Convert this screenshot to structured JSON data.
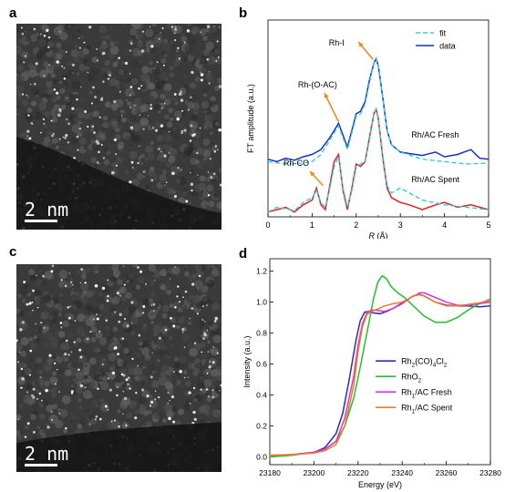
{
  "panels": {
    "a": {
      "letter": "a",
      "scalebar": "2 nm"
    },
    "b": {
      "letter": "b"
    },
    "c": {
      "letter": "c",
      "scalebar": "2 nm"
    },
    "d": {
      "letter": "d"
    }
  },
  "chart_data": [
    {
      "type": "line",
      "panel": "b",
      "xlabel_var": "R",
      "xlabel_unit": " (Å)",
      "ylabel": "FT amplitude (a.u.)",
      "xlim": [
        0,
        5
      ],
      "xticks": [
        0,
        1,
        2,
        3,
        4,
        5
      ],
      "legend": {
        "position": "top-right",
        "entries": [
          "fit",
          "data"
        ]
      },
      "colors": {
        "fit": "#33ccdd",
        "data_fresh": "#1a2fbf",
        "data_spent": "#e02020",
        "arrow": "#f08a1e"
      },
      "annotations": [
        "Rh-I",
        "Rh-(O-AC)",
        "Rh-CO"
      ],
      "curve_labels": {
        "fresh": {
          "pre": "Rh",
          "sub": "1",
          "post": "/AC Fresh"
        },
        "spent": {
          "pre": "Rh",
          "sub": "1",
          "post": "/AC Spent"
        }
      },
      "series": [
        {
          "name": "data",
          "curve": "fresh",
          "x": [
            0,
            0.2,
            0.4,
            0.6,
            0.8,
            1.0,
            1.2,
            1.4,
            1.6,
            1.7,
            1.8,
            1.9,
            2.0,
            2.1,
            2.2,
            2.3,
            2.4,
            2.45,
            2.5,
            2.6,
            2.7,
            2.8,
            3.0,
            3.2,
            3.5,
            3.8,
            4.0,
            4.3,
            4.6,
            4.8,
            5.0
          ],
          "y": [
            1.1,
            1.05,
            1.12,
            1.08,
            1.15,
            1.2,
            1.3,
            1.55,
            1.85,
            1.6,
            1.35,
            1.7,
            2.05,
            2.1,
            2.3,
            2.75,
            3.1,
            3.2,
            3.05,
            2.4,
            1.7,
            1.4,
            1.25,
            1.22,
            1.18,
            1.25,
            1.15,
            1.2,
            1.3,
            1.12,
            1.1
          ]
        },
        {
          "name": "fit",
          "curve": "fresh",
          "x": [
            0,
            0.4,
            0.8,
            1.0,
            1.2,
            1.4,
            1.6,
            1.7,
            1.8,
            1.9,
            2.0,
            2.1,
            2.2,
            2.3,
            2.4,
            2.45,
            2.5,
            2.6,
            2.7,
            2.8,
            3.0,
            3.5,
            4.0,
            4.5,
            5.0
          ],
          "y": [
            1.05,
            1.0,
            1.02,
            1.05,
            1.2,
            1.5,
            1.8,
            1.55,
            1.3,
            1.65,
            2.0,
            2.05,
            2.25,
            2.7,
            3.1,
            3.2,
            3.05,
            2.4,
            1.7,
            1.4,
            1.25,
            1.1,
            1.05,
            1.0,
            1.02
          ]
        },
        {
          "name": "data",
          "curve": "spent",
          "x": [
            0,
            0.2,
            0.4,
            0.6,
            0.8,
            1.0,
            1.1,
            1.2,
            1.3,
            1.4,
            1.5,
            1.6,
            1.7,
            1.8,
            1.9,
            2.0,
            2.1,
            2.2,
            2.3,
            2.4,
            2.45,
            2.5,
            2.6,
            2.7,
            2.8,
            3.0,
            3.2,
            3.5,
            3.8,
            4.0,
            4.3,
            4.6,
            5.0
          ],
          "y": [
            0.05,
            0.1,
            0.15,
            0.05,
            0.2,
            0.3,
            0.55,
            0.2,
            0.1,
            0.6,
            1.1,
            1.25,
            0.5,
            0.1,
            0.55,
            1.05,
            1.0,
            1.1,
            1.6,
            2.1,
            2.2,
            2.0,
            1.2,
            0.55,
            0.35,
            0.25,
            0.2,
            0.1,
            0.2,
            0.25,
            0.15,
            0.2,
            0.1
          ]
        },
        {
          "name": "fit",
          "curve": "spent",
          "x": [
            0,
            0.2,
            0.4,
            0.6,
            0.8,
            1.0,
            1.1,
            1.2,
            1.3,
            1.4,
            1.5,
            1.6,
            1.7,
            1.8,
            1.9,
            2.0,
            2.1,
            2.2,
            2.3,
            2.4,
            2.45,
            2.5,
            2.6,
            2.7,
            2.8,
            3.0,
            3.2,
            3.5,
            4.0,
            4.5,
            5.0
          ],
          "y": [
            0.05,
            0.15,
            0.12,
            0.08,
            0.25,
            0.35,
            0.5,
            0.25,
            0.15,
            0.55,
            1.0,
            1.2,
            0.55,
            0.15,
            0.5,
            1.0,
            1.05,
            1.1,
            1.55,
            2.1,
            2.2,
            2.0,
            1.25,
            0.6,
            0.45,
            0.55,
            0.45,
            0.3,
            0.2,
            0.15,
            0.1
          ]
        }
      ]
    },
    {
      "type": "line",
      "panel": "d",
      "xlabel": "Energy (eV)",
      "ylabel": "Intensity (a.u.)",
      "xlim": [
        23180,
        23280
      ],
      "ylim": [
        -0.05,
        1.28
      ],
      "xticks": [
        23180,
        23200,
        23220,
        23240,
        23260,
        23280
      ],
      "yticks": [
        0.0,
        0.2,
        0.4,
        0.6,
        0.8,
        1.0,
        1.2
      ],
      "ytick_labels": [
        "0.0",
        "0.2",
        "0.4",
        "0.6",
        "0.8",
        "1.0",
        "1.2"
      ],
      "legend": {
        "position": "center-right"
      },
      "series": [
        {
          "name": "Rh2(CO)4Cl2",
          "label": {
            "pre": "Rh",
            "sub1": "2",
            "mid": "(CO)",
            "sub2": "4",
            "post": "Cl",
            "sub3": "2"
          },
          "color": "#2a2fb8",
          "x": [
            23180,
            23190,
            23200,
            23205,
            23210,
            23213,
            23216,
            23219,
            23221,
            23223,
            23225,
            23227,
            23230,
            23233,
            23236,
            23240,
            23245,
            23248,
            23250,
            23255,
            23260,
            23265,
            23270,
            23275,
            23280
          ],
          "y": [
            0.01,
            0.015,
            0.03,
            0.06,
            0.15,
            0.28,
            0.5,
            0.75,
            0.88,
            0.935,
            0.94,
            0.93,
            0.925,
            0.94,
            0.96,
            0.995,
            1.04,
            1.05,
            1.04,
            1.0,
            0.98,
            0.975,
            0.975,
            0.97,
            0.975
          ]
        },
        {
          "name": "RhO2",
          "label": {
            "pre": "RhO",
            "sub1": "2"
          },
          "color": "#22c22a",
          "x": [
            23180,
            23190,
            23200,
            23205,
            23210,
            23214,
            23218,
            23221,
            23224,
            23227,
            23229,
            23231,
            23233,
            23235,
            23238,
            23241,
            23244,
            23247,
            23250,
            23255,
            23260,
            23265,
            23270,
            23275,
            23280
          ],
          "y": [
            0.0,
            0.01,
            0.03,
            0.05,
            0.1,
            0.2,
            0.38,
            0.58,
            0.8,
            1.02,
            1.13,
            1.17,
            1.15,
            1.1,
            1.06,
            1.03,
            0.99,
            0.95,
            0.91,
            0.87,
            0.87,
            0.9,
            0.95,
            0.99,
            1.02
          ]
        },
        {
          "name": "Rh1/AC Fresh",
          "label": {
            "pre": "Rh",
            "sub1": "1",
            "post": "/AC Fresh"
          },
          "color": "#dd33dd",
          "x": [
            23180,
            23190,
            23200,
            23205,
            23210,
            23214,
            23218,
            23220,
            23222,
            23224,
            23226,
            23229,
            23232,
            23236,
            23240,
            23244,
            23248,
            23250,
            23255,
            23260,
            23265,
            23270,
            23275,
            23280
          ],
          "y": [
            0.01,
            0.015,
            0.03,
            0.05,
            0.1,
            0.25,
            0.52,
            0.72,
            0.86,
            0.93,
            0.95,
            0.945,
            0.94,
            0.96,
            0.99,
            1.03,
            1.06,
            1.06,
            1.03,
            1.0,
            0.98,
            0.98,
            0.99,
            1.0
          ]
        },
        {
          "name": "Rh1/AC Spent",
          "label": {
            "pre": "Rh",
            "sub1": "1",
            "post": "/AC Spent"
          },
          "color": "#f07a20",
          "x": [
            23180,
            23190,
            23200,
            23205,
            23210,
            23214,
            23218,
            23220,
            23222,
            23224,
            23226,
            23229,
            23232,
            23236,
            23240,
            23244,
            23247,
            23250,
            23255,
            23260,
            23265,
            23270,
            23275,
            23280
          ],
          "y": [
            0.01,
            0.015,
            0.025,
            0.04,
            0.08,
            0.2,
            0.46,
            0.68,
            0.84,
            0.92,
            0.94,
            0.955,
            0.975,
            0.99,
            1.0,
            1.03,
            1.05,
            1.04,
            1.0,
            0.975,
            0.975,
            0.985,
            0.995,
            1.01
          ]
        }
      ]
    }
  ]
}
